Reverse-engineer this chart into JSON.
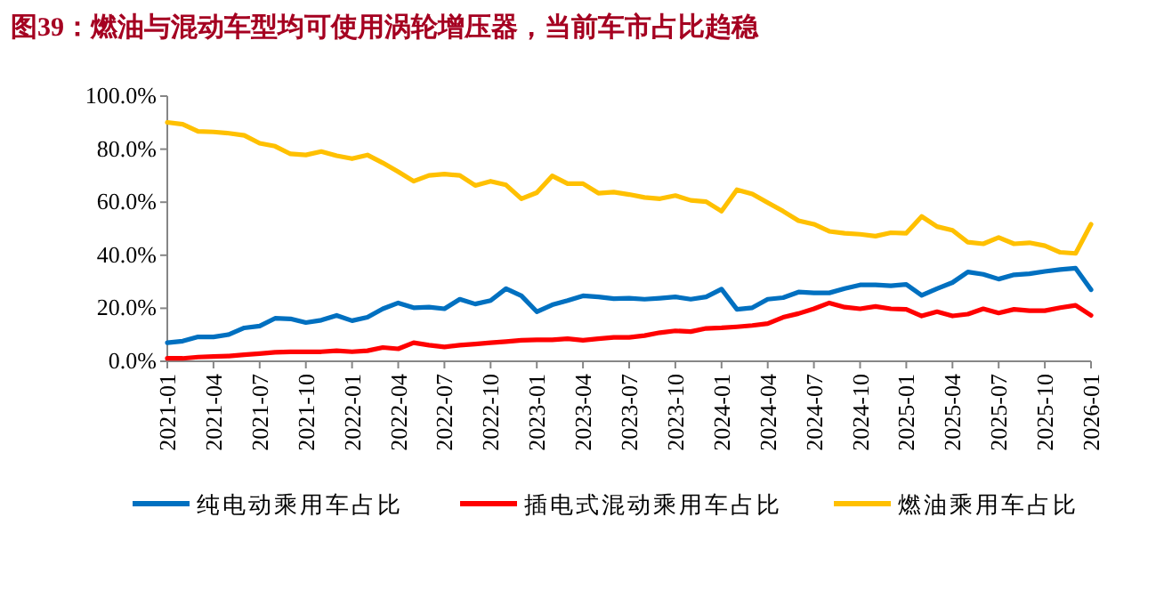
{
  "chart_data": {
    "type": "line",
    "title": "图39：燃油与混动车型均可使用涡轮增压器，当前车市占比趋稳",
    "x": [
      "2021-01",
      "2021-02",
      "2021-03",
      "2021-04",
      "2021-05",
      "2021-06",
      "2021-07",
      "2021-08",
      "2021-09",
      "2021-10",
      "2021-11",
      "2021-12",
      "2022-01",
      "2022-02",
      "2022-03",
      "2022-04",
      "2022-05",
      "2022-06",
      "2022-07",
      "2022-08",
      "2022-09",
      "2022-10",
      "2022-11",
      "2022-12",
      "2023-01",
      "2023-02",
      "2023-03",
      "2023-04",
      "2023-05",
      "2023-06",
      "2023-07",
      "2023-08",
      "2023-09",
      "2023-10",
      "2023-11",
      "2023-12",
      "2024-01",
      "2024-02",
      "2024-03",
      "2024-04",
      "2024-05",
      "2024-06",
      "2024-07",
      "2024-08",
      "2024-09",
      "2024-10",
      "2024-11",
      "2024-12",
      "2025-01",
      "2025-02",
      "2025-03",
      "2025-04",
      "2025-05",
      "2025-06",
      "2025-07",
      "2025-08",
      "2025-09",
      "2025-10",
      "2025-11",
      "2025-12",
      "2026-01"
    ],
    "series": [
      {
        "name": "纯电动乘用车占比",
        "color": "#0070c0",
        "values": [
          7.0,
          7.6,
          9.2,
          9.2,
          10.1,
          12.6,
          13.3,
          16.2,
          16.0,
          14.6,
          15.5,
          17.3,
          15.3,
          16.6,
          19.8,
          22.0,
          20.2,
          20.4,
          19.8,
          23.4,
          21.6,
          22.9,
          27.4,
          24.7,
          18.7,
          21.3,
          22.9,
          24.7,
          24.3,
          23.6,
          23.8,
          23.4,
          23.8,
          24.3,
          23.4,
          24.3,
          27.2,
          19.6,
          20.2,
          23.4,
          24.0,
          26.1,
          25.8,
          25.8,
          27.4,
          28.8,
          28.8,
          28.5,
          29.0,
          24.9,
          27.4,
          29.7,
          33.7,
          32.8,
          31.0,
          32.6,
          33.0,
          33.9,
          34.6,
          35.1,
          27.0
        ]
      },
      {
        "name": "插电式混动乘用车占比",
        "color": "#ff0000",
        "values": [
          1.1,
          1.1,
          1.6,
          1.8,
          2.0,
          2.5,
          2.9,
          3.4,
          3.6,
          3.6,
          3.6,
          4.0,
          3.6,
          4.0,
          5.2,
          4.7,
          7.0,
          6.1,
          5.4,
          6.1,
          6.5,
          7.0,
          7.4,
          7.9,
          8.1,
          8.1,
          8.5,
          7.9,
          8.5,
          9.0,
          9.0,
          9.7,
          10.8,
          11.5,
          11.2,
          12.4,
          12.6,
          13.0,
          13.5,
          14.2,
          16.6,
          18.0,
          19.8,
          22.0,
          20.4,
          19.8,
          20.7,
          19.8,
          19.6,
          17.1,
          18.7,
          17.1,
          17.8,
          19.8,
          18.2,
          19.6,
          19.1,
          19.1,
          20.2,
          21.1,
          17.3
        ]
      },
      {
        "name": "燃油乘用车占比",
        "color": "#ffc000",
        "values": [
          90.1,
          89.4,
          86.7,
          86.5,
          86.0,
          85.2,
          82.2,
          81.1,
          78.2,
          77.8,
          79.1,
          77.5,
          76.4,
          77.8,
          74.8,
          71.5,
          67.9,
          70.1,
          70.6,
          70.1,
          66.3,
          67.9,
          66.5,
          61.3,
          63.6,
          69.9,
          67.0,
          67.0,
          63.4,
          63.8,
          62.9,
          61.8,
          61.3,
          62.5,
          60.7,
          60.2,
          56.6,
          64.7,
          63.1,
          59.8,
          56.6,
          53.0,
          51.7,
          49.0,
          48.3,
          47.9,
          47.2,
          48.5,
          48.3,
          54.6,
          50.8,
          49.4,
          44.9,
          44.3,
          46.7,
          44.3,
          44.7,
          43.6,
          41.1,
          40.7,
          51.7
        ]
      }
    ],
    "xlim": [
      "2021-01",
      "2026-01"
    ],
    "xticks": [
      "2021-01",
      "2021-04",
      "2021-07",
      "2021-10",
      "2022-01",
      "2022-04",
      "2022-07",
      "2022-10",
      "2023-01",
      "2023-04",
      "2023-07",
      "2023-10",
      "2024-01",
      "2024-04",
      "2024-07",
      "2024-10",
      "2025-01",
      "2025-04",
      "2025-07",
      "2025-10",
      "2026-01"
    ],
    "ylim": [
      0,
      100
    ],
    "yticks": [
      {
        "value": 0,
        "label": "0.0%"
      },
      {
        "value": 20,
        "label": "20.0%"
      },
      {
        "value": 40,
        "label": "40.0%"
      },
      {
        "value": 60,
        "label": "60.0%"
      },
      {
        "value": 80,
        "label": "80.0%"
      },
      {
        "value": 100,
        "label": "100.0%"
      }
    ],
    "grid": false,
    "legend": "bottom",
    "marker": "none",
    "line_style": "solid"
  }
}
